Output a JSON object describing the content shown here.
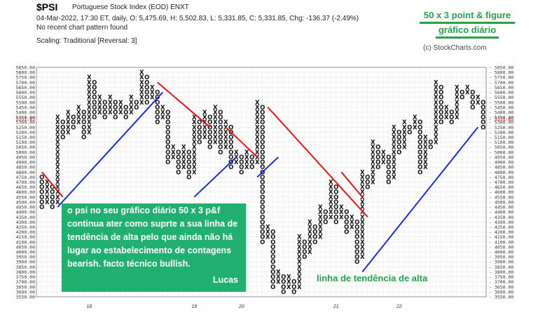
{
  "header": {
    "symbol": "$PSI",
    "name": "Portuguese Stock Index (EOD)  ENXT",
    "line1": "04-Mar-2022, 17:30 ET, daily, O: 5,475.69, H: 5,502.83, L: 5,331.85, C: 5,331.85, Chg: -136.37 (-2.49%)",
    "line2": "No recent chart pattern found",
    "line3": "Scaling: Traditional [Reversal: 3]",
    "copyright": "(c) StockCharts.com"
  },
  "annotations": {
    "title_line1": "50 x 3 point & figure",
    "title_line2": "gráfico diário",
    "note": "o psi no seu gráfico diário 50 x 3 p&f continua ater como suprte a sua linha de tendência de alta pelo que ainda não há lugar ao estabelecimento de contagens bearish. facto técnico bullish.",
    "signature": "Lucas",
    "trend_label": "linha de tendência de alta"
  },
  "chart_data": {
    "type": "point-and-figure",
    "box_size": 50,
    "reversal": 3,
    "scaling": "Traditional",
    "ylim": [
      3550,
      5850
    ],
    "y_tick_step": 50,
    "last_price_label": "5331.85",
    "x_tick_labels": [
      {
        "col": 9,
        "label": "18"
      },
      {
        "col": 29,
        "label": "19"
      },
      {
        "col": 38,
        "label": "20"
      },
      {
        "col": 56,
        "label": "21"
      },
      {
        "col": 68,
        "label": "22"
      }
    ],
    "columns": [
      {
        "t": "O",
        "lo": 4450,
        "hi": 4750
      },
      {
        "t": "X",
        "lo": 4500,
        "hi": 4700
      },
      {
        "t": "O",
        "lo": 4450,
        "hi": 4650
      },
      {
        "t": "X",
        "lo": 4500,
        "hi": 5350
      },
      {
        "t": "O",
        "lo": 5150,
        "hi": 5300
      },
      {
        "t": "X",
        "lo": 5200,
        "hi": 5400
      },
      {
        "t": "O",
        "lo": 5250,
        "hi": 5350
      },
      {
        "t": "X",
        "lo": 5300,
        "hi": 5450
      },
      {
        "t": "O",
        "lo": 5150,
        "hi": 5400
      },
      {
        "t": "X",
        "lo": 5200,
        "hi": 5750
      },
      {
        "t": "O",
        "lo": 5350,
        "hi": 5700
      },
      {
        "t": "X",
        "lo": 5400,
        "hi": 5550
      },
      {
        "t": "O",
        "lo": 5350,
        "hi": 5500
      },
      {
        "t": "X",
        "lo": 5400,
        "hi": 5550
      },
      {
        "t": "O",
        "lo": 5350,
        "hi": 5500
      },
      {
        "t": "X",
        "lo": 5400,
        "hi": 5500
      },
      {
        "t": "O",
        "lo": 5350,
        "hi": 5450
      },
      {
        "t": "X",
        "lo": 5400,
        "hi": 5550
      },
      {
        "t": "O",
        "lo": 5450,
        "hi": 5500
      },
      {
        "t": "X",
        "lo": 5500,
        "hi": 5800
      },
      {
        "t": "O",
        "lo": 5500,
        "hi": 5750
      },
      {
        "t": "X",
        "lo": 5550,
        "hi": 5650
      },
      {
        "t": "O",
        "lo": 5300,
        "hi": 5600
      },
      {
        "t": "X",
        "lo": 5350,
        "hi": 5450
      },
      {
        "t": "O",
        "lo": 4900,
        "hi": 5400
      },
      {
        "t": "X",
        "lo": 4950,
        "hi": 5050
      },
      {
        "t": "O",
        "lo": 4800,
        "hi": 5000
      },
      {
        "t": "X",
        "lo": 4850,
        "hi": 5050
      },
      {
        "t": "O",
        "lo": 4750,
        "hi": 5000
      },
      {
        "t": "X",
        "lo": 4800,
        "hi": 5350
      },
      {
        "t": "O",
        "lo": 5100,
        "hi": 5300
      },
      {
        "t": "X",
        "lo": 5150,
        "hi": 5400
      },
      {
        "t": "O",
        "lo": 5050,
        "hi": 5350
      },
      {
        "t": "X",
        "lo": 5100,
        "hi": 5450
      },
      {
        "t": "O",
        "lo": 5000,
        "hi": 5400
      },
      {
        "t": "X",
        "lo": 5050,
        "hi": 5300
      },
      {
        "t": "O",
        "lo": 4850,
        "hi": 5250
      },
      {
        "t": "X",
        "lo": 4900,
        "hi": 5000
      },
      {
        "t": "O",
        "lo": 4800,
        "hi": 4950
      },
      {
        "t": "X",
        "lo": 4850,
        "hi": 5000
      },
      {
        "t": "O",
        "lo": 4850,
        "hi": 4950
      },
      {
        "t": "X",
        "lo": 4900,
        "hi": 5500
      },
      {
        "t": "O",
        "lo": 4100,
        "hi": 5450
      },
      {
        "t": "X",
        "lo": 4150,
        "hi": 4250
      },
      {
        "t": "O",
        "lo": 3650,
        "hi": 4200
      },
      {
        "t": "X",
        "lo": 3700,
        "hi": 3800
      },
      {
        "t": "O",
        "lo": 3600,
        "hi": 3750
      },
      {
        "t": "X",
        "lo": 3650,
        "hi": 3750
      },
      {
        "t": "O",
        "lo": 3600,
        "hi": 3700
      },
      {
        "t": "X",
        "lo": 3650,
        "hi": 4150
      },
      {
        "t": "O",
        "lo": 3950,
        "hi": 4100
      },
      {
        "t": "X",
        "lo": 4000,
        "hi": 4300
      },
      {
        "t": "O",
        "lo": 4100,
        "hi": 4250
      },
      {
        "t": "X",
        "lo": 4150,
        "hi": 4450
      },
      {
        "t": "O",
        "lo": 4300,
        "hi": 4400
      },
      {
        "t": "X",
        "lo": 4350,
        "hi": 4700
      },
      {
        "t": "O",
        "lo": 4300,
        "hi": 4650
      },
      {
        "t": "X",
        "lo": 4350,
        "hi": 4450
      },
      {
        "t": "O",
        "lo": 4200,
        "hi": 4400
      },
      {
        "t": "X",
        "lo": 4250,
        "hi": 4350
      },
      {
        "t": "O",
        "lo": 3900,
        "hi": 4300
      },
      {
        "t": "X",
        "lo": 3950,
        "hi": 4800
      },
      {
        "t": "O",
        "lo": 4650,
        "hi": 4750
      },
      {
        "t": "X",
        "lo": 4700,
        "hi": 5100
      },
      {
        "t": "O",
        "lo": 4850,
        "hi": 5050
      },
      {
        "t": "X",
        "lo": 4900,
        "hi": 5000
      },
      {
        "t": "O",
        "lo": 4700,
        "hi": 4950
      },
      {
        "t": "X",
        "lo": 4750,
        "hi": 5250
      },
      {
        "t": "O",
        "lo": 5000,
        "hi": 5200
      },
      {
        "t": "X",
        "lo": 5050,
        "hi": 5300
      },
      {
        "t": "O",
        "lo": 5200,
        "hi": 5250
      },
      {
        "t": "X",
        "lo": 5250,
        "hi": 5350
      },
      {
        "t": "O",
        "lo": 4800,
        "hi": 5300
      },
      {
        "t": "X",
        "lo": 4850,
        "hi": 5150
      },
      {
        "t": "O",
        "lo": 5050,
        "hi": 5100
      },
      {
        "t": "X",
        "lo": 5100,
        "hi": 5700
      },
      {
        "t": "O",
        "lo": 5300,
        "hi": 5650
      },
      {
        "t": "X",
        "lo": 5350,
        "hi": 5450
      },
      {
        "t": "O",
        "lo": 5300,
        "hi": 5400
      },
      {
        "t": "X",
        "lo": 5350,
        "hi": 5650
      },
      {
        "t": "O",
        "lo": 5550,
        "hi": 5600
      },
      {
        "t": "X",
        "lo": 5600,
        "hi": 5650
      },
      {
        "t": "O",
        "lo": 5450,
        "hi": 5600
      },
      {
        "t": "X",
        "lo": 5500,
        "hi": 5550
      },
      {
        "t": "O",
        "lo": 5250,
        "hi": 5500
      }
    ],
    "trendlines": [
      {
        "kind": "resistance",
        "color": "red",
        "start": [
          0,
          4800
        ],
        "end": [
          4,
          4550
        ]
      },
      {
        "kind": "support",
        "color": "blue",
        "start": [
          3,
          4450
        ],
        "end": [
          23,
          5600
        ]
      },
      {
        "kind": "resistance",
        "color": "red",
        "start": [
          22,
          5700
        ],
        "end": [
          32,
          5250
        ]
      },
      {
        "kind": "support",
        "color": "blue",
        "start": [
          29,
          4550
        ],
        "end": [
          37,
          4950
        ]
      },
      {
        "kind": "resistance",
        "color": "red",
        "start": [
          35,
          5250
        ],
        "end": [
          41,
          4950
        ]
      },
      {
        "kind": "support",
        "color": "blue",
        "start": [
          41,
          4750
        ],
        "end": [
          45,
          4950
        ]
      },
      {
        "kind": "resistance",
        "color": "red",
        "start": [
          43,
          5450
        ],
        "end": [
          62,
          4350
        ]
      },
      {
        "kind": "resistance",
        "color": "red",
        "start": [
          57,
          4800
        ],
        "end": [
          61,
          4550
        ]
      },
      {
        "kind": "support",
        "color": "blue",
        "start": [
          61,
          3800
        ],
        "end": [
          83,
          5250
        ]
      }
    ]
  }
}
